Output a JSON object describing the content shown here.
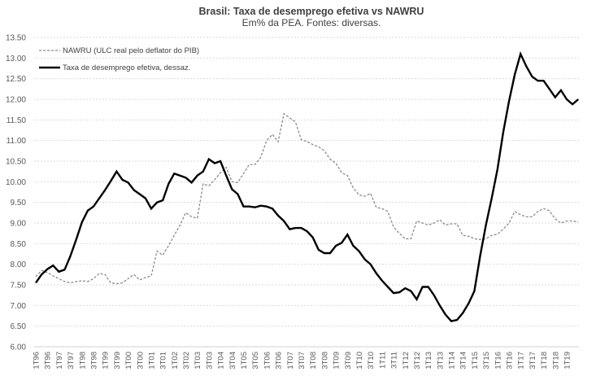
{
  "chart_data": {
    "type": "line",
    "title": "Brasil: Taxa de desemprego efetiva vs NAWRU",
    "subtitle": "Em% da PEA. Fontes: diversas.",
    "xlabel": "",
    "ylabel": "",
    "ylim": [
      6.0,
      13.5
    ],
    "yticks": [
      "6.00",
      "6.50",
      "7.00",
      "7.50",
      "8.00",
      "8.50",
      "9.00",
      "9.50",
      "10.00",
      "10.50",
      "11.00",
      "11.50",
      "12.00",
      "12.50",
      "13.00",
      "13.50"
    ],
    "ytick_values": [
      6.0,
      6.5,
      7.0,
      7.5,
      8.0,
      8.5,
      9.0,
      9.5,
      10.0,
      10.5,
      11.0,
      11.5,
      12.0,
      12.5,
      13.0,
      13.5
    ],
    "grid": true,
    "legend_position": "top-left",
    "x": [
      "1T96",
      "2T96",
      "3T96",
      "4T96",
      "1T97",
      "2T97",
      "3T97",
      "4T97",
      "1T98",
      "2T98",
      "3T98",
      "4T98",
      "1T99",
      "2T99",
      "3T99",
      "4T99",
      "1T00",
      "2T00",
      "3T00",
      "4T00",
      "1T01",
      "2T01",
      "3T01",
      "4T01",
      "1T02",
      "2T02",
      "3T02",
      "4T02",
      "1T03",
      "2T03",
      "3T03",
      "4T03",
      "1T04",
      "2T04",
      "3T04",
      "4T04",
      "1T05",
      "2T05",
      "3T05",
      "4T05",
      "1T06",
      "2T06",
      "3T06",
      "4T06",
      "1T07",
      "2T07",
      "3T07",
      "4T07",
      "1T08",
      "2T08",
      "3T08",
      "4T08",
      "1T09",
      "2T09",
      "3T09",
      "4T09",
      "1T10",
      "2T10",
      "3T10",
      "4T10",
      "1T11",
      "2T11",
      "3T11",
      "4T11",
      "1T12",
      "2T12",
      "3T12",
      "4T12",
      "1T13",
      "2T13",
      "3T13",
      "4T13",
      "1T14",
      "2T14",
      "3T14",
      "4T14",
      "1T15",
      "2T15",
      "3T15",
      "4T15",
      "1T16",
      "2T16",
      "3T16",
      "4T16",
      "1T17",
      "2T17",
      "3T17",
      "4T17",
      "1T18",
      "2T18",
      "3T18",
      "4T18",
      "1T19",
      "2T19",
      "3T19"
    ],
    "xtick_labels": [
      "1T96",
      "3T96",
      "1T97",
      "3T97",
      "1T98",
      "3T98",
      "1T99",
      "3T99",
      "1T00",
      "3T00",
      "1T01",
      "3T01",
      "1T02",
      "3T02",
      "1T03",
      "3T03",
      "1T04",
      "3T04",
      "1T05",
      "3T05",
      "1T06",
      "3T06",
      "1T07",
      "3T07",
      "1T08",
      "3T08",
      "1T09",
      "3T09",
      "1T10",
      "3T10",
      "1T11",
      "3T11",
      "1T12",
      "3T12",
      "1T13",
      "3T13",
      "1T14",
      "3T14",
      "1T15",
      "3T15",
      "1T16",
      "3T16",
      "1T17",
      "3T17",
      "1T18",
      "3T18",
      "1T19"
    ],
    "series": [
      {
        "name": "NAWRU (ULC real pelo deflator do PIB)",
        "style": "dashed",
        "color": "#8c8c8c",
        "values": [
          7.7,
          7.85,
          7.8,
          7.72,
          7.65,
          7.58,
          7.55,
          7.58,
          7.6,
          7.58,
          7.65,
          7.78,
          7.75,
          7.55,
          7.53,
          7.55,
          7.65,
          7.75,
          7.62,
          7.68,
          7.72,
          8.32,
          8.22,
          8.45,
          8.7,
          8.95,
          9.25,
          9.15,
          9.12,
          9.95,
          9.9,
          10.05,
          10.22,
          10.35,
          10.0,
          9.98,
          10.2,
          10.42,
          10.42,
          10.6,
          11.0,
          11.15,
          10.97,
          11.65,
          11.55,
          11.45,
          11.02,
          10.98,
          10.9,
          10.85,
          10.75,
          10.55,
          10.45,
          10.22,
          10.15,
          9.85,
          9.68,
          9.65,
          9.72,
          9.38,
          9.35,
          9.28,
          8.9,
          8.75,
          8.62,
          8.62,
          9.05,
          9.0,
          8.95,
          9.0,
          9.08,
          8.95,
          8.98,
          8.98,
          8.7,
          8.68,
          8.62,
          8.6,
          8.62,
          8.7,
          8.73,
          8.85,
          9.0,
          9.28,
          9.2,
          9.15,
          9.15,
          9.28,
          9.35,
          9.3,
          9.1,
          9.0,
          9.05,
          9.05,
          9.03
        ]
      },
      {
        "name": "Taxa de desemprego efetiva, dessaz.",
        "style": "solid",
        "color": "#000000",
        "values": [
          7.55,
          7.75,
          7.88,
          7.97,
          7.82,
          7.87,
          8.2,
          8.6,
          9.02,
          9.3,
          9.4,
          9.6,
          9.8,
          10.02,
          10.25,
          10.05,
          9.98,
          9.8,
          9.7,
          9.6,
          9.35,
          9.5,
          9.55,
          9.95,
          10.2,
          10.15,
          10.1,
          9.98,
          10.15,
          10.25,
          10.55,
          10.45,
          10.5,
          10.15,
          9.82,
          9.7,
          9.4,
          9.4,
          9.38,
          9.42,
          9.4,
          9.35,
          9.18,
          9.05,
          8.85,
          8.88,
          8.88,
          8.8,
          8.65,
          8.35,
          8.27,
          8.27,
          8.45,
          8.52,
          8.72,
          8.45,
          8.32,
          8.12,
          8.0,
          7.78,
          7.6,
          7.45,
          7.3,
          7.32,
          7.42,
          7.35,
          7.15,
          7.45,
          7.45,
          7.25,
          7.0,
          6.78,
          6.62,
          6.65,
          6.82,
          7.05,
          7.35,
          8.2,
          8.95,
          9.6,
          10.3,
          11.2,
          11.95,
          12.6,
          13.1,
          12.8,
          12.55,
          12.45,
          12.45,
          12.25,
          12.05,
          12.22,
          12.0,
          11.88,
          12.0
        ]
      }
    ]
  }
}
